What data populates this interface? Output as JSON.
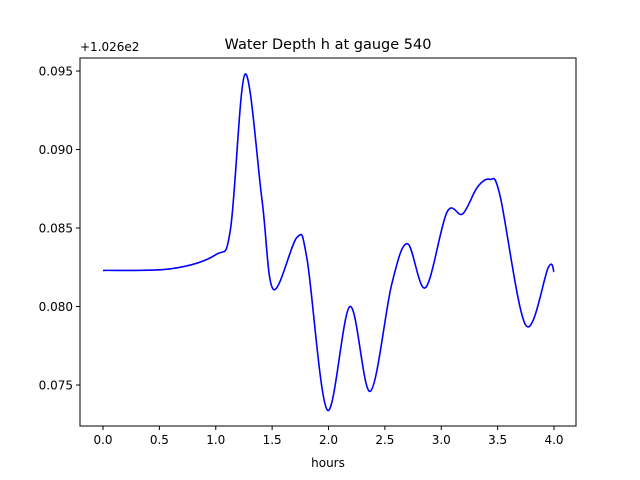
{
  "chart_data": {
    "type": "line",
    "title": "Water Depth h at gauge 540",
    "xlabel": "hours",
    "ylabel": "",
    "offset_label": "+1.026e2",
    "xlim": [
      -0.204,
      4.195
    ],
    "ylim": [
      0.07239,
      0.09583
    ],
    "xticks": [
      0.0,
      0.5,
      1.0,
      1.5,
      2.0,
      2.5,
      3.0,
      3.5,
      4.0
    ],
    "xtick_labels": [
      "0.0",
      "0.5",
      "1.0",
      "1.5",
      "2.0",
      "2.5",
      "3.0",
      "3.5",
      "4.0"
    ],
    "yticks": [
      0.075,
      0.08,
      0.085,
      0.09,
      0.095
    ],
    "ytick_labels": [
      "0.075",
      "0.080",
      "0.085",
      "0.090",
      "0.095"
    ],
    "grid": false,
    "series": [
      {
        "name": "h",
        "color": "#0000ff",
        "x": [
          0.0,
          0.6,
          1.0,
          1.13,
          1.26,
          1.41,
          1.51,
          1.72,
          1.81,
          1.99,
          2.19,
          2.37,
          2.56,
          2.7,
          2.86,
          3.05,
          3.19,
          3.32,
          3.43,
          3.52,
          3.75,
          3.95,
          4.0
        ],
        "y": [
          0.0823,
          0.0824,
          0.0833,
          0.0849,
          0.0948,
          0.0868,
          0.0811,
          0.0844,
          0.083,
          0.0734,
          0.08,
          0.0746,
          0.0814,
          0.084,
          0.0812,
          0.086,
          0.0859,
          0.0876,
          0.0881,
          0.0871,
          0.0788,
          0.0825,
          0.0822
        ]
      }
    ]
  }
}
